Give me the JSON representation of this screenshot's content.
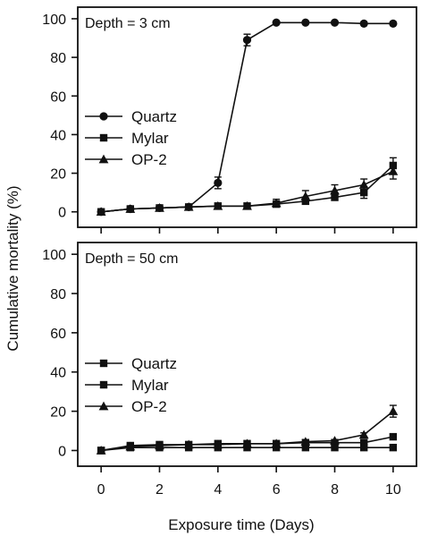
{
  "chart_data": [
    {
      "type": "line",
      "title": "Depth = 3 cm",
      "xlabel": "",
      "ylabel": "Cumulative mortality (%)",
      "xlim": [
        -0.8,
        10.8
      ],
      "ylim": [
        -8,
        106
      ],
      "xticks": [
        "0",
        "2",
        "4",
        "6",
        "8",
        "10"
      ],
      "yticks": [
        "0",
        "20",
        "40",
        "60",
        "80",
        "100"
      ],
      "x": [
        0,
        1,
        2,
        3,
        4,
        5,
        6,
        7,
        8,
        9,
        10
      ],
      "legend_position": "left",
      "grid": false,
      "series": [
        {
          "name": "Quartz",
          "marker": "circle",
          "values": [
            0,
            1.5,
            2,
            2.5,
            15,
            89,
            98,
            98,
            98,
            97.5,
            97.5
          ],
          "errors": [
            0,
            0,
            0,
            0,
            3,
            3,
            0,
            0,
            0,
            0,
            0
          ]
        },
        {
          "name": "Mylar",
          "marker": "square",
          "values": [
            0,
            1.5,
            2,
            2.5,
            3,
            3,
            4,
            5.5,
            7.5,
            10,
            24
          ],
          "errors": [
            0,
            0,
            0,
            0,
            0,
            0,
            0,
            1.5,
            1.5,
            3,
            4
          ]
        },
        {
          "name": "OP-2",
          "marker": "triangle",
          "values": [
            0,
            1.5,
            2,
            2.5,
            3,
            3,
            4.5,
            8,
            11,
            14,
            21
          ],
          "errors": [
            0,
            0,
            0,
            0,
            0,
            0,
            2,
            3,
            3,
            3,
            4
          ]
        }
      ]
    },
    {
      "type": "line",
      "title": "Depth = 50 cm",
      "xlabel": "Exposure time (Days)",
      "ylabel": "Cumulative mortality (%)",
      "xlim": [
        -0.8,
        10.8
      ],
      "ylim": [
        -8,
        106
      ],
      "xticks": [
        "0",
        "2",
        "4",
        "6",
        "8",
        "10"
      ],
      "yticks": [
        "0",
        "20",
        "40",
        "60",
        "80",
        "100"
      ],
      "x": [
        0,
        1,
        2,
        3,
        4,
        5,
        6,
        7,
        8,
        9,
        10
      ],
      "legend_position": "left",
      "grid": false,
      "series": [
        {
          "name": "Quartz",
          "marker": "square",
          "values": [
            0,
            2.5,
            3,
            3,
            3.5,
            3.5,
            3.5,
            4,
            4,
            4,
            7
          ],
          "errors": [
            0,
            0,
            0,
            0,
            0,
            0,
            0,
            0,
            0,
            0,
            0
          ]
        },
        {
          "name": "Mylar",
          "marker": "square",
          "values": [
            0,
            1.5,
            1.5,
            1.5,
            1.5,
            1.5,
            1.5,
            1.5,
            1.5,
            1.5,
            1.5
          ],
          "errors": [
            0,
            0,
            0,
            0,
            0,
            0,
            0,
            0,
            0,
            0,
            0
          ]
        },
        {
          "name": "OP-2",
          "marker": "triangle",
          "values": [
            0,
            2,
            2.5,
            3,
            3,
            3.5,
            3.5,
            4.5,
            5,
            8,
            20
          ],
          "errors": [
            0,
            0,
            0,
            0,
            0,
            0,
            0,
            0,
            0,
            1,
            3
          ]
        }
      ]
    }
  ]
}
